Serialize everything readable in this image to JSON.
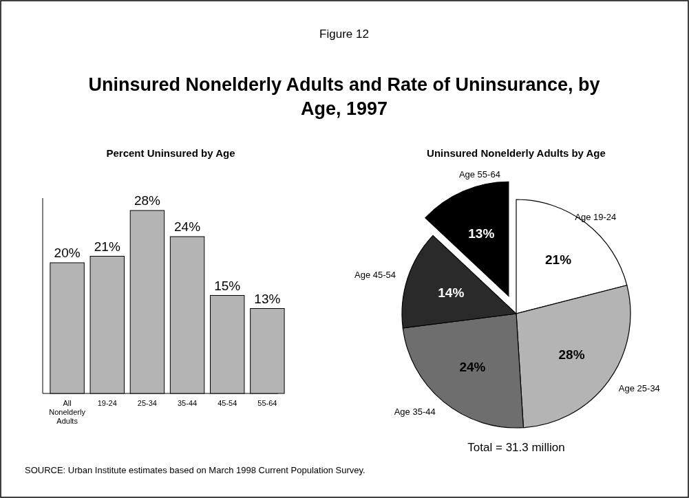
{
  "chart_data": [
    {
      "type": "bar",
      "title": "Uninsured Nonelderly Adults and Rate of Uninsurance, by Age, 1997",
      "subtitle": "Percent Uninsured by Age",
      "categories": [
        "All Nonelderly Adults",
        "19-24",
        "25-34",
        "35-44",
        "45-54",
        "55-64"
      ],
      "values": [
        20,
        21,
        28,
        24,
        15,
        13
      ],
      "value_labels": [
        "20%",
        "21%",
        "28%",
        "24%",
        "15%",
        "13%"
      ],
      "color": "#b4b4b4",
      "annotations": [
        "Figure 12",
        "SOURCE: Urban Institute estimates based on March 1998 Current Population Survey."
      ]
    },
    {
      "type": "pie",
      "title": "Uninsured Nonelderly Adults by Age",
      "categories": [
        "Age 19-24",
        "Age 25-34",
        "Age 35-44",
        "Age 45-54",
        "Age 55-64"
      ],
      "values": [
        21,
        28,
        24,
        14,
        13
      ],
      "value_labels": [
        "21%",
        "28%",
        "24%",
        "14%",
        "13%"
      ],
      "colors": [
        "#ffffff",
        "#b4b4b4",
        "#6e6e6e",
        "#2a2a2a",
        "#000000"
      ],
      "annotations": [
        "Total = 31.3 million"
      ]
    }
  ]
}
